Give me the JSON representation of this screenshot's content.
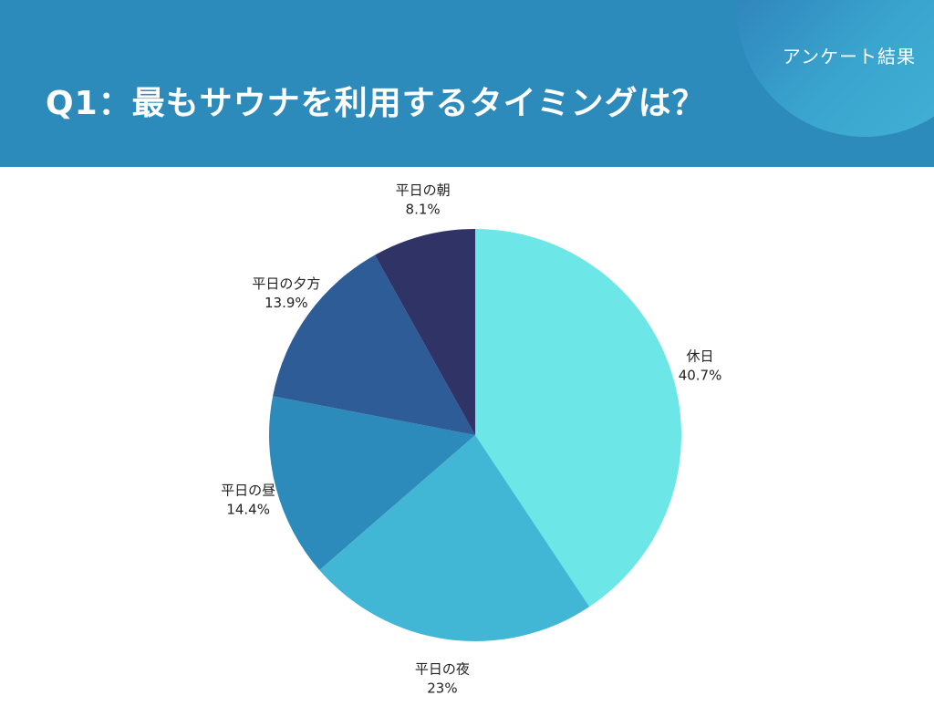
{
  "header": {
    "title": "Q1：最もサウナを利用するタイミングは？",
    "badge": "アンケート結果"
  },
  "chart_data": {
    "type": "pie",
    "categories": [
      "休日",
      "平日の夜",
      "平日の昼",
      "平日の夕方",
      "平日の朝"
    ],
    "values": [
      40.7,
      23,
      14.4,
      13.9,
      8.1
    ],
    "labels": [
      "40.7%",
      "23%",
      "14.4%",
      "13.9%",
      "8.1%"
    ],
    "colors": [
      "#6de6e8",
      "#42b7d5",
      "#2d8bbb",
      "#2e5c97",
      "#2f3366"
    ],
    "start_angle": "12 o'clock",
    "direction": "clockwise"
  }
}
